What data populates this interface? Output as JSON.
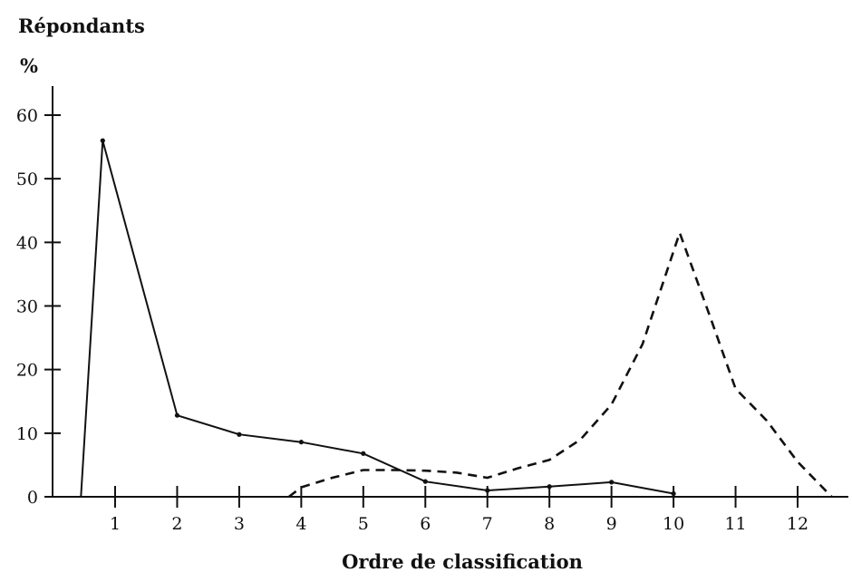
{
  "chart_data": {
    "type": "line",
    "title": "",
    "ylabel_line1": "Répondants",
    "ylabel_line2": "%",
    "xlabel": "Ordre de classification",
    "x_ticks": [
      1,
      2,
      3,
      4,
      5,
      6,
      7,
      8,
      9,
      10,
      11,
      12
    ],
    "y_ticks": [
      0,
      10,
      20,
      30,
      40,
      50,
      60
    ],
    "xlim": [
      0.2,
      13
    ],
    "ylim": [
      0,
      65
    ],
    "grid": false,
    "series": [
      {
        "style": "solid",
        "color": "#111111",
        "x": [
          0.45,
          0.8,
          2,
          3,
          4,
          5,
          6,
          7,
          8,
          9,
          10
        ],
        "y": [
          0,
          56,
          12.8,
          9.8,
          8.6,
          6.8,
          2.4,
          1,
          1.6,
          2.3,
          0.5
        ]
      },
      {
        "style": "dashed",
        "color": "#111111",
        "x": [
          3.8,
          4,
          4.5,
          5,
          5.5,
          6,
          6.5,
          7,
          7.5,
          8,
          8.5,
          9,
          9.5,
          10.1,
          10.6,
          11,
          11.5,
          12,
          12.55
        ],
        "y": [
          0,
          1.5,
          3,
          4.2,
          4.2,
          4.1,
          3.8,
          3,
          4.5,
          5.8,
          9,
          14.5,
          24,
          41.5,
          28,
          17,
          12,
          5.5,
          0
        ]
      }
    ]
  }
}
